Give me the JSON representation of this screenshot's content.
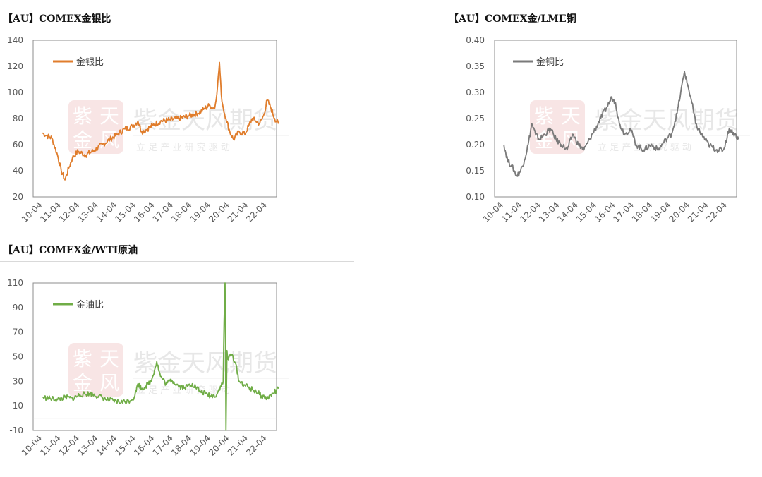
{
  "panels": [
    {
      "title": "【AU】COMEX金银比"
    },
    {
      "title": "【AU】COMEX金/LME铜"
    },
    {
      "title": "【AU】COMEX金/WTI原油"
    }
  ],
  "watermark": {
    "name": "紫金天风期货",
    "slogan": "立 足 产 业   研 究 驱 动",
    "seal": "紫天金风"
  },
  "chart_data": [
    {
      "type": "line",
      "categories": [
        "10-04",
        "11-04",
        "12-04",
        "13-04",
        "14-04",
        "15-04",
        "16-04",
        "17-04",
        "18-04",
        "19-04",
        "20-04",
        "21-04",
        "22-04"
      ],
      "ylim": [
        20,
        140
      ],
      "yticks": [
        20,
        40,
        60,
        80,
        100,
        120,
        140
      ],
      "ytick_labels": [
        "20",
        "40",
        "60",
        "80",
        "100",
        "120",
        "140"
      ],
      "series": [
        {
          "name": "金银比",
          "color": "#e07d2c",
          "x": [
            0,
            0.2,
            0.5,
            0.8,
            1.0,
            1.2,
            1.4,
            1.6,
            1.9,
            2.3,
            2.8,
            3.2,
            3.6,
            4.0,
            4.4,
            4.8,
            5.1,
            5.3,
            5.6,
            5.9,
            6.3,
            6.8,
            7.3,
            7.8,
            8.3,
            8.6,
            8.9,
            9.2,
            9.35,
            9.45,
            9.55,
            9.65,
            9.8,
            10.0,
            10.2,
            10.5,
            10.8,
            11.0,
            11.2,
            11.4,
            11.6,
            11.8,
            12.0,
            12.2,
            12.4,
            12.6
          ],
          "y": [
            69,
            67,
            65,
            52,
            40,
            33,
            42,
            50,
            55,
            52,
            56,
            60,
            64,
            68,
            72,
            74,
            78,
            70,
            72,
            75,
            78,
            79,
            80,
            82,
            84,
            87,
            90,
            88,
            105,
            123,
            98,
            88,
            80,
            70,
            64,
            70,
            68,
            74,
            80,
            78,
            76,
            82,
            94,
            88,
            80,
            76
          ]
        }
      ]
    },
    {
      "type": "line",
      "categories": [
        "10-04",
        "11-04",
        "12-04",
        "13-04",
        "14-04",
        "15-04",
        "16-04",
        "17-04",
        "18-04",
        "19-04",
        "20-04",
        "21-04",
        "22-04"
      ],
      "ylim": [
        0.1,
        0.4
      ],
      "yticks": [
        0.1,
        0.15,
        0.2,
        0.25,
        0.3,
        0.35,
        0.4
      ],
      "ytick_labels": [
        "0.10",
        "0.15",
        "0.20",
        "0.25",
        "0.30",
        "0.35",
        "0.40"
      ],
      "series": [
        {
          "name": "金铜比",
          "color": "#7a7a7a",
          "x": [
            0,
            0.2,
            0.4,
            0.7,
            0.9,
            1.1,
            1.3,
            1.5,
            1.7,
            1.9,
            2.2,
            2.5,
            2.8,
            3.1,
            3.4,
            3.7,
            4.0,
            4.3,
            4.6,
            4.9,
            5.2,
            5.5,
            5.8,
            6.0,
            6.2,
            6.5,
            6.8,
            7.1,
            7.5,
            7.9,
            8.3,
            8.7,
            9.0,
            9.3,
            9.5,
            9.7,
            9.9,
            10.1,
            10.3,
            10.6,
            11.0,
            11.4,
            11.8,
            12.1,
            12.4,
            12.6
          ],
          "y": [
            0.2,
            0.17,
            0.16,
            0.14,
            0.15,
            0.17,
            0.2,
            0.24,
            0.22,
            0.21,
            0.22,
            0.23,
            0.21,
            0.2,
            0.19,
            0.22,
            0.2,
            0.19,
            0.21,
            0.23,
            0.25,
            0.27,
            0.29,
            0.28,
            0.24,
            0.22,
            0.23,
            0.2,
            0.19,
            0.2,
            0.19,
            0.21,
            0.22,
            0.26,
            0.3,
            0.34,
            0.31,
            0.28,
            0.24,
            0.22,
            0.2,
            0.19,
            0.19,
            0.23,
            0.22,
            0.21
          ]
        }
      ]
    },
    {
      "type": "line",
      "categories": [
        "10-04",
        "11-04",
        "12-04",
        "13-04",
        "14-04",
        "15-04",
        "16-04",
        "17-04",
        "18-04",
        "19-04",
        "20-04",
        "21-04",
        "22-04"
      ],
      "ylim": [
        -10,
        110
      ],
      "yticks": [
        -10,
        10,
        30,
        50,
        70,
        90,
        110
      ],
      "ytick_labels": [
        "-10",
        "10",
        "30",
        "50",
        "70",
        "90",
        "110"
      ],
      "series": [
        {
          "name": "金油比",
          "color": "#70ad47",
          "x": [
            0,
            0.4,
            0.8,
            1.2,
            1.6,
            2.0,
            2.5,
            3.0,
            3.4,
            3.8,
            4.2,
            4.6,
            4.9,
            5.1,
            5.3,
            5.5,
            5.8,
            6.1,
            6.3,
            6.6,
            6.9,
            7.3,
            7.6,
            8.0,
            8.4,
            8.7,
            9.0,
            9.3,
            9.5,
            9.6,
            9.65,
            9.7,
            9.75,
            9.8,
            9.85,
            9.9,
            10.1,
            10.3,
            10.5,
            10.8,
            11.1,
            11.4,
            11.7,
            12.0,
            12.3,
            12.6
          ],
          "y": [
            17,
            16,
            15,
            17,
            16,
            19,
            20,
            18,
            15,
            14,
            13,
            14,
            17,
            28,
            24,
            26,
            30,
            46,
            34,
            28,
            31,
            26,
            25,
            28,
            22,
            20,
            18,
            19,
            26,
            28,
            30,
            80,
            110,
            -10,
            55,
            48,
            52,
            45,
            30,
            27,
            24,
            22,
            18,
            16,
            20,
            24
          ]
        }
      ]
    }
  ]
}
